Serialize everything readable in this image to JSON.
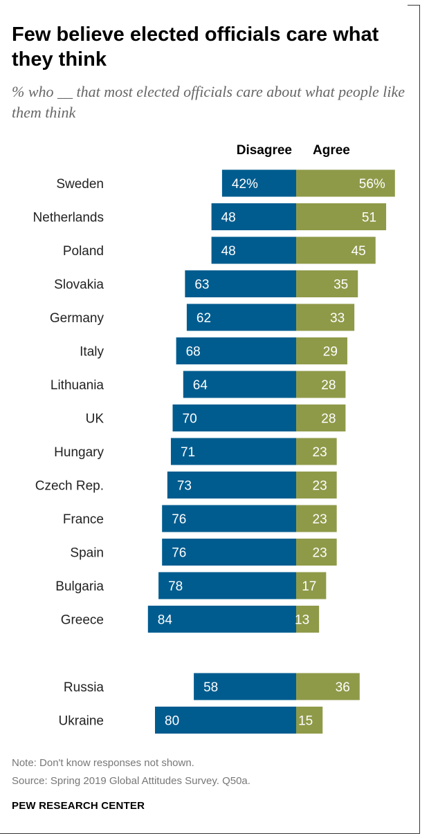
{
  "title": "Few believe elected officials care what they think",
  "subtitle": "% who __ that most elected officials care about what people like them think",
  "note": "Note: Don't know responses not shown.",
  "source": "Source: Spring 2019 Global Attitudes Survey. Q50a.",
  "brand": "PEW RESEARCH CENTER",
  "colors": {
    "disagree": "#005C8F",
    "agree": "#8F9A49",
    "label_text": "#ffffff",
    "category_text": "#222222"
  },
  "chart_data": {
    "type": "bar",
    "orientation": "horizontal-diverging",
    "series": [
      {
        "name": "Disagree",
        "values": [
          42,
          48,
          48,
          63,
          62,
          68,
          64,
          70,
          71,
          73,
          76,
          76,
          78,
          84,
          58,
          80
        ]
      },
      {
        "name": "Agree",
        "values": [
          56,
          51,
          45,
          35,
          33,
          29,
          28,
          28,
          23,
          23,
          23,
          23,
          17,
          13,
          36,
          15
        ]
      }
    ],
    "categories": [
      "Sweden",
      "Netherlands",
      "Poland",
      "Slovakia",
      "Germany",
      "Italy",
      "Lithuania",
      "UK",
      "Hungary",
      "Czech Rep.",
      "France",
      "Spain",
      "Bulgaria",
      "Greece",
      "Russia",
      "Ukraine"
    ],
    "groups": [
      [
        "Sweden",
        "Netherlands",
        "Poland",
        "Slovakia",
        "Germany",
        "Italy",
        "Lithuania",
        "UK",
        "Hungary",
        "Czech Rep.",
        "France",
        "Spain",
        "Bulgaria",
        "Greece"
      ],
      [
        "Russia",
        "Ukraine"
      ]
    ],
    "first_label_suffix": "%",
    "unit": "%"
  }
}
